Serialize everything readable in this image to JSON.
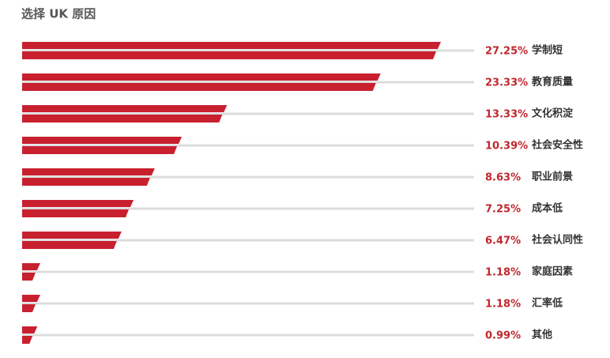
{
  "chart_data": {
    "type": "bar",
    "orientation": "horizontal",
    "title": "选择 UK 原因",
    "categories": [
      "学制短",
      "教育质量",
      "文化积淀",
      "社会安全性",
      "职业前景",
      "成本低",
      "社会认同性",
      "家庭因素",
      "汇率低",
      "其他"
    ],
    "values": [
      27.25,
      23.33,
      13.33,
      10.39,
      8.63,
      7.25,
      6.47,
      1.18,
      1.18,
      0.99
    ],
    "value_labels": [
      "27.25%",
      "23.33%",
      "13.33%",
      "10.39%",
      "8.63%",
      "7.25%",
      "6.47%",
      "1.18%",
      "1.18%",
      "0.99%"
    ],
    "color": "#c8202f"
  }
}
